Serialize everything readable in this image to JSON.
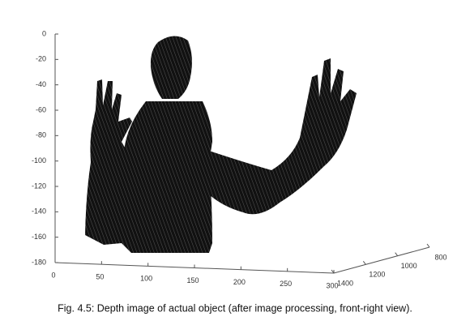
{
  "chart_data": {
    "type": "scatter3d",
    "caption": "Fig. 4.5: Depth image of actual object (after image processing, front-right view).",
    "color": "#111111",
    "xlim": [
      0,
      300
    ],
    "xticks": [
      0,
      50,
      100,
      150,
      200,
      250,
      300
    ],
    "ylim": [
      1400,
      800
    ],
    "yticks": [
      1400,
      1200,
      1000,
      800
    ],
    "zlim": [
      -180,
      0
    ],
    "zticks": [
      0,
      -20,
      -40,
      -60,
      -80,
      -100,
      -120,
      -140,
      -160,
      -180
    ],
    "grid": false
  }
}
